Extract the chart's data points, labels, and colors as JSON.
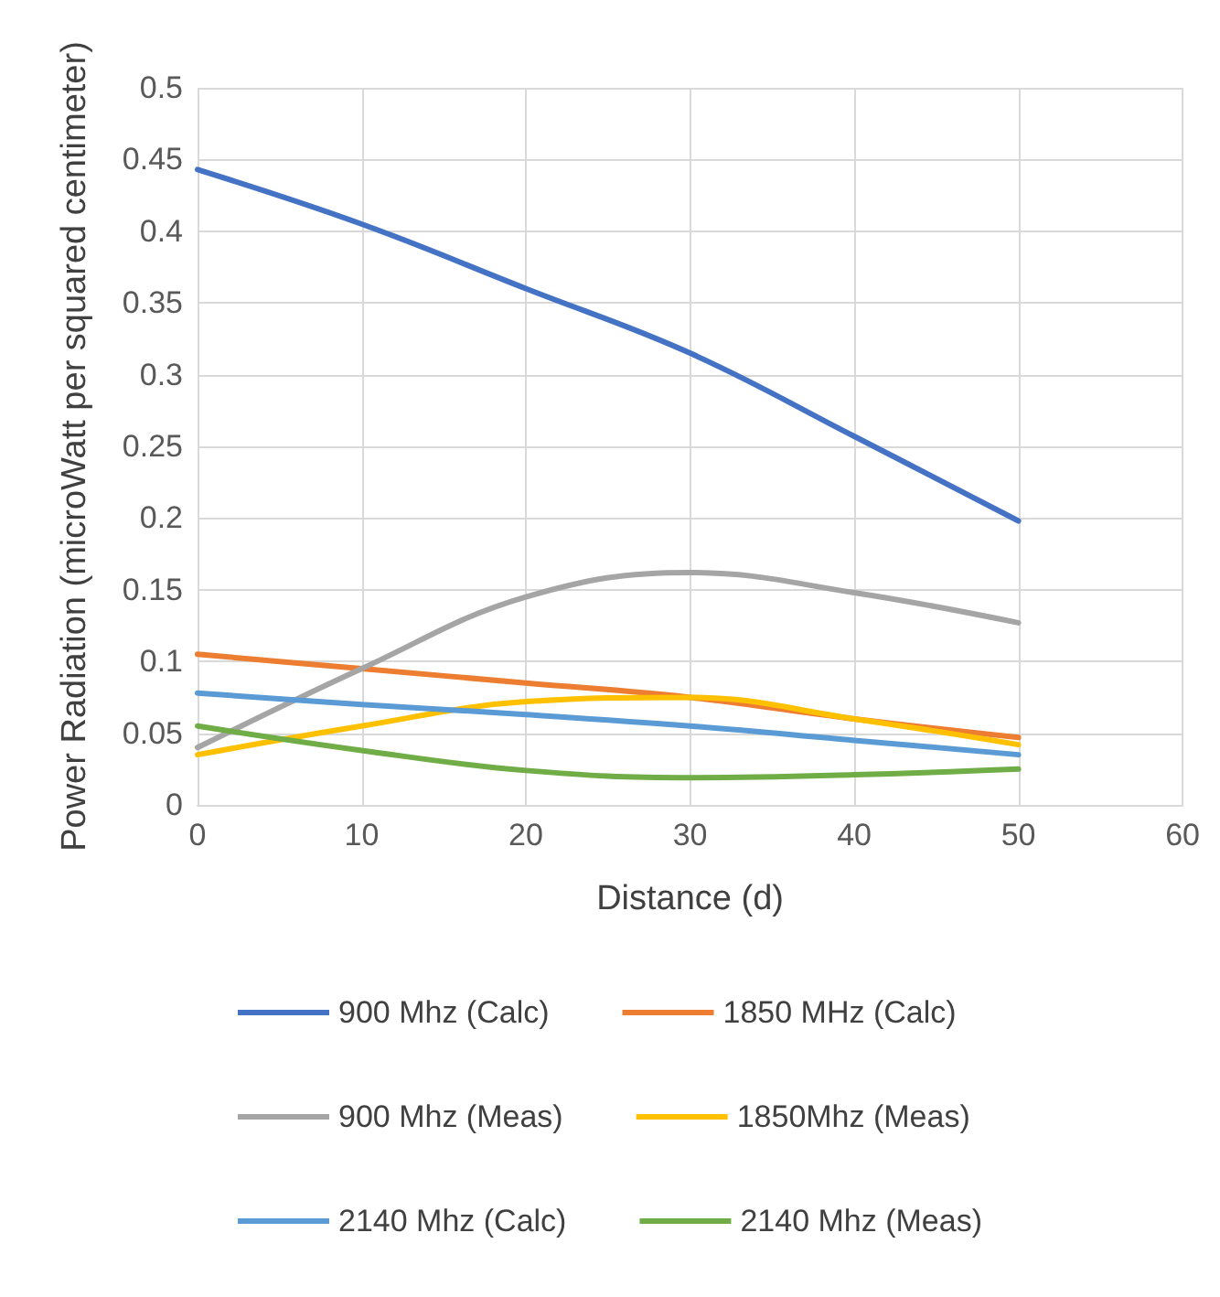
{
  "chart_data": {
    "type": "line",
    "xlabel": "Distance (d)",
    "ylabel": "Power Radiation (microWatt per squared centimeter)",
    "x": [
      0,
      10,
      20,
      30,
      40,
      50
    ],
    "xlim": [
      0,
      60
    ],
    "xticks": [
      0,
      10,
      20,
      30,
      40,
      50,
      60
    ],
    "ylim": [
      0,
      0.5
    ],
    "yticks": [
      0,
      0.05,
      0.1,
      0.15,
      0.2,
      0.25,
      0.3,
      0.35,
      0.4,
      0.45,
      0.5
    ],
    "grid": true,
    "legend": "bottom",
    "marker": "none",
    "line_style": "solid",
    "series": [
      {
        "name": "900 Mhz (Calc)",
        "color": "#4472c4",
        "values": [
          0.443,
          0.405,
          0.36,
          0.315,
          0.257,
          0.198
        ]
      },
      {
        "name": "1850 MHz (Calc)",
        "color": "#ed7d31",
        "values": [
          0.105,
          0.095,
          0.085,
          0.075,
          0.06,
          0.047
        ]
      },
      {
        "name": "900 Mhz (Meas)",
        "color": "#a5a5a5",
        "values": [
          0.04,
          0.095,
          0.145,
          0.162,
          0.148,
          0.127
        ]
      },
      {
        "name": "1850Mhz (Meas)",
        "color": "#ffc000",
        "values": [
          0.035,
          0.055,
          0.072,
          0.075,
          0.06,
          0.042
        ]
      },
      {
        "name": "2140 Mhz (Calc)",
        "color": "#5b9bd5",
        "values": [
          0.078,
          0.07,
          0.063,
          0.055,
          0.045,
          0.035
        ]
      },
      {
        "name": "2140 Mhz (Meas)",
        "color": "#70ad47",
        "values": [
          0.055,
          0.038,
          0.024,
          0.019,
          0.021,
          0.025
        ]
      }
    ]
  }
}
